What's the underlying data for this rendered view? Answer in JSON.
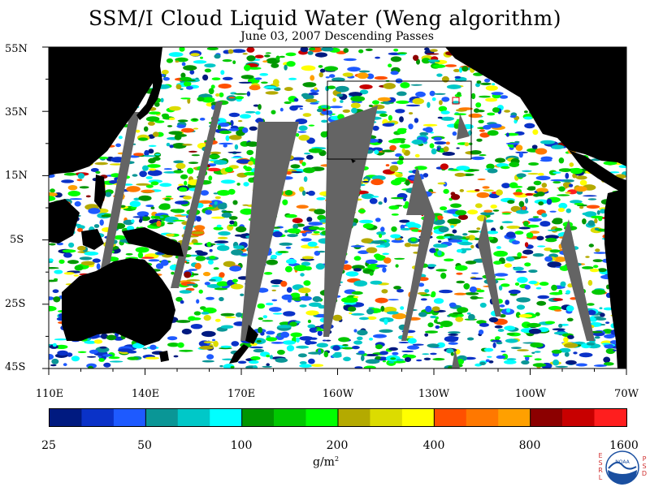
{
  "title": "SSM/I Cloud Liquid Water (Weng algorithm)",
  "subtitle": "June 03, 2007  Descending Passes",
  "lat_labels": [
    "55N",
    "35N",
    "15N",
    "5S",
    "25S",
    "45S"
  ],
  "lon_labels": [
    "110E",
    "140E",
    "170E",
    "160W",
    "130W",
    "100W",
    "70W"
  ],
  "colorbar": {
    "labels": [
      "25",
      "50",
      "100",
      "200",
      "400",
      "800",
      "1600"
    ],
    "units": "g/m",
    "units_sup": "2",
    "colors": [
      "#001a80",
      "#0a32c8",
      "#1e5aff",
      "#0a9696",
      "#00c8c8",
      "#00ffff",
      "#009600",
      "#00c800",
      "#00ff00",
      "#b4aa00",
      "#dcdc00",
      "#ffff00",
      "#ff5000",
      "#ff7800",
      "#ffa000",
      "#8c0000",
      "#c80000",
      "#ff1e1e"
    ]
  },
  "logo": {
    "left_letters": "ESRL",
    "right_letters": "PSD",
    "center_text": "NOAA"
  },
  "colors": {
    "land": "#000000",
    "missing": "#646464",
    "clear": "#ffffff"
  }
}
